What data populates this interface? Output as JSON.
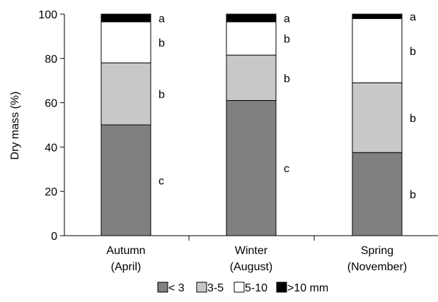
{
  "chart_data": {
    "type": "bar",
    "stacked": true,
    "categories": [
      {
        "line1": "Autumn",
        "line2": "(April)"
      },
      {
        "line1": "Winter",
        "line2": "(August)"
      },
      {
        "line1": "Spring",
        "line2": "(November)"
      }
    ],
    "series": [
      {
        "name": "< 3",
        "color": "#808080",
        "values": [
          50,
          61,
          37.5
        ]
      },
      {
        "name": "3-5",
        "color": "#c8c8c8",
        "values": [
          28,
          20.5,
          31.5
        ]
      },
      {
        "name": "5-10",
        "color": "#ffffff",
        "values": [
          18.5,
          15,
          29
        ]
      },
      {
        "name": ">10 mm",
        "color": "#000000",
        "values": [
          3.5,
          3.5,
          2
        ]
      }
    ],
    "letters": [
      [
        "c",
        "b",
        "b",
        "a"
      ],
      [
        "c",
        "b",
        "b",
        "a"
      ],
      [
        "b",
        "b",
        "b",
        "a"
      ]
    ],
    "ylabel": "Dry mass (%)",
    "xlabel": "",
    "ylim": [
      0,
      100
    ],
    "yticks": [
      0,
      20,
      40,
      60,
      80,
      100
    ],
    "legend_position": "bottom"
  }
}
